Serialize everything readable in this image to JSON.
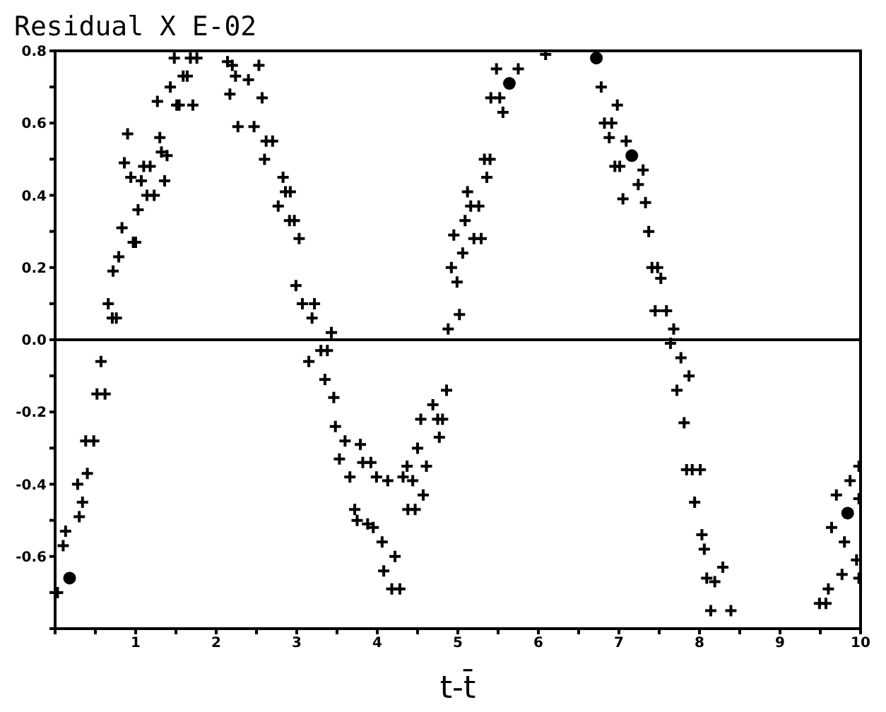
{
  "chart_data": {
    "type": "scatter",
    "title": "Residual X E-02",
    "xlabel": "t-t̄",
    "xlim": [
      0,
      10
    ],
    "ylim": [
      -0.8,
      0.8
    ],
    "xticks": [
      {
        "value": 0,
        "label": null
      },
      {
        "value": 0.5,
        "label": null
      },
      1,
      {
        "value": 1.5,
        "label": null
      },
      2,
      {
        "value": 2.5,
        "label": null
      },
      3,
      {
        "value": 3.5,
        "label": null
      },
      4,
      {
        "value": 4.5,
        "label": null
      },
      5,
      {
        "value": 5.5,
        "label": null
      },
      6,
      {
        "value": 6.5,
        "label": null
      },
      7,
      {
        "value": 7.5,
        "label": null
      },
      8,
      {
        "value": 8.5,
        "label": null
      },
      9,
      {
        "value": 9.5,
        "label": null
      },
      10
    ],
    "yticks": [
      {
        "value": -0.8,
        "label": null
      },
      {
        "value": -0.7,
        "label": null
      },
      -0.6,
      {
        "value": -0.5,
        "label": null
      },
      -0.4,
      {
        "value": -0.3,
        "label": null
      },
      -0.2,
      {
        "value": -0.1,
        "label": null
      },
      {
        "value": 0,
        "label": "0.0"
      },
      {
        "value": 0.1,
        "label": null
      },
      0.2,
      {
        "value": 0.3,
        "label": null
      },
      0.4,
      {
        "value": 0.5,
        "label": null
      },
      0.6,
      {
        "value": 0.7,
        "label": null
      },
      0.8
    ],
    "grid": false,
    "legend": false,
    "marker": "cross",
    "ref_lines": [
      {
        "axis": "y",
        "value": 0,
        "color": "#000000"
      }
    ],
    "series": [
      {
        "color": "#000000",
        "x": [
          0.66,
          0.71,
          0.76,
          0.72,
          0.79,
          0.83,
          0.9,
          0.86,
          0.94,
          0.97,
          1.0,
          1.03,
          1.07,
          1.1,
          1.18,
          1.14,
          1.23,
          1.27,
          1.3,
          1.32,
          1.39,
          1.36,
          1.43,
          1.48,
          1.51,
          1.54,
          1.59,
          1.64,
          1.68,
          1.76,
          1.71,
          2.14,
          2.2,
          2.17,
          2.24,
          2.27,
          2.4,
          2.47,
          2.53,
          2.57,
          2.62,
          2.7,
          2.6,
          2.83,
          2.86,
          2.92,
          2.77,
          2.91,
          2.97,
          3.03,
          2.99,
          3.07,
          3.22,
          3.19,
          3.43,
          3.3,
          3.38,
          3.15,
          4.88,
          5.02,
          4.99,
          4.92,
          5.06,
          4.95,
          5.2,
          5.29,
          5.09,
          5.16,
          5.26,
          5.12,
          5.36,
          5.33,
          5.4,
          5.56,
          5.41,
          5.52,
          5.48,
          5.75,
          6.09,
          6.78,
          6.98,
          6.82,
          6.91,
          6.88,
          7.09,
          6.95,
          7.01,
          7.3,
          7.24,
          7.05,
          7.33,
          7.37,
          7.41,
          7.48,
          7.52,
          7.45,
          7.59,
          7.68,
          7.64,
          7.77,
          0.57,
          0.52,
          0.62,
          0.38,
          0.48,
          0.4,
          0.28,
          0.34,
          0.3,
          0.13,
          0.1,
          0.03,
          3.35,
          3.46,
          3.48,
          3.6,
          3.53,
          3.66,
          3.79,
          3.82,
          3.92,
          3.99,
          4.13,
          3.72,
          3.75,
          3.88,
          3.95,
          4.06,
          4.22,
          4.08,
          4.18,
          4.28,
          4.37,
          4.32,
          4.44,
          4.38,
          4.47,
          4.57,
          4.5,
          4.61,
          4.54,
          4.69,
          4.75,
          4.81,
          4.77,
          4.86,
          7.87,
          7.72,
          7.81,
          7.84,
          7.91,
          8.01,
          7.94,
          8.03,
          8.06,
          8.29,
          8.09,
          8.19,
          8.14,
          8.39,
          9.98,
          9.87,
          9.7,
          9.98,
          9.64,
          9.8,
          9.95,
          9.77,
          9.98,
          9.6,
          9.49,
          9.57
        ],
        "values": [
          0.1,
          0.06,
          0.06,
          0.19,
          0.23,
          0.31,
          0.57,
          0.49,
          0.45,
          0.27,
          0.27,
          0.36,
          0.44,
          0.48,
          0.48,
          0.4,
          0.4,
          0.66,
          0.56,
          0.52,
          0.51,
          0.44,
          0.7,
          0.78,
          0.65,
          0.65,
          0.73,
          0.73,
          0.78,
          0.78,
          0.65,
          0.77,
          0.76,
          0.68,
          0.73,
          0.59,
          0.72,
          0.59,
          0.76,
          0.67,
          0.55,
          0.55,
          0.5,
          0.45,
          0.41,
          0.41,
          0.37,
          0.33,
          0.33,
          0.28,
          0.15,
          0.1,
          0.1,
          0.06,
          0.02,
          -0.03,
          -0.03,
          -0.06,
          0.03,
          0.07,
          0.16,
          0.2,
          0.24,
          0.29,
          0.28,
          0.28,
          0.33,
          0.37,
          0.37,
          0.41,
          0.45,
          0.5,
          0.5,
          0.63,
          0.67,
          0.67,
          0.75,
          0.75,
          0.79,
          0.7,
          0.65,
          0.6,
          0.6,
          0.56,
          0.55,
          0.48,
          0.48,
          0.47,
          0.43,
          0.39,
          0.38,
          0.3,
          0.2,
          0.2,
          0.17,
          0.08,
          0.08,
          0.03,
          -0.01,
          -0.05,
          -0.06,
          -0.15,
          -0.15,
          -0.28,
          -0.28,
          -0.37,
          -0.4,
          -0.45,
          -0.49,
          -0.53,
          -0.57,
          -0.7,
          -0.11,
          -0.16,
          -0.24,
          -0.28,
          -0.33,
          -0.38,
          -0.29,
          -0.34,
          -0.34,
          -0.38,
          -0.39,
          -0.47,
          -0.5,
          -0.51,
          -0.52,
          -0.56,
          -0.6,
          -0.64,
          -0.69,
          -0.69,
          -0.35,
          -0.38,
          -0.39,
          -0.47,
          -0.47,
          -0.43,
          -0.3,
          -0.35,
          -0.22,
          -0.18,
          -0.22,
          -0.22,
          -0.27,
          -0.14,
          -0.1,
          -0.14,
          -0.23,
          -0.36,
          -0.36,
          -0.36,
          -0.45,
          -0.54,
          -0.58,
          -0.63,
          -0.66,
          -0.67,
          -0.75,
          -0.75,
          -0.35,
          -0.39,
          -0.43,
          -0.44,
          -0.52,
          -0.56,
          -0.61,
          -0.65,
          -0.66,
          -0.69,
          -0.73,
          -0.73
        ]
      },
      {
        "color": "#000000",
        "marker": "circle",
        "x": [
          0.18,
          5.64,
          6.72,
          7.16,
          9.84
        ],
        "values": [
          -0.66,
          0.71,
          0.78,
          0.51,
          -0.48
        ]
      }
    ]
  }
}
